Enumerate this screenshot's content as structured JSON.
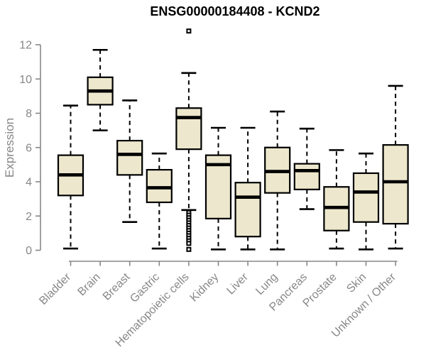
{
  "header": {
    "title": "ENSG00000184408 - KCND2"
  },
  "colors": {
    "background": "#FFFFFF",
    "box_fill": "#EDE8CD",
    "box_stroke": "#000000",
    "median_stroke": "#000000",
    "whisker_stroke": "#000000",
    "outlier_stroke": "#000000",
    "axis": "#878787",
    "tick_label": "#878787",
    "title_color": "#000000"
  },
  "chart_data": {
    "type": "boxplot",
    "title": "ENSG00000184408 - KCND2",
    "xlabel": "",
    "ylabel": "Expression",
    "ylim": [
      0,
      12
    ],
    "yticks": [
      0,
      2,
      4,
      6,
      8,
      10,
      12
    ],
    "grid": false,
    "legend_position": "none",
    "categories": [
      "Bladder",
      "Brain",
      "Breast",
      "Gastric",
      "Hematopoietic cells",
      "Kidney",
      "Liver",
      "Lung",
      "Pancreas",
      "Prostate",
      "Skin",
      "Unknown / Other"
    ],
    "series": [
      {
        "name": "Bladder",
        "whisker_low": 0.1,
        "q1": 3.2,
        "median": 4.4,
        "q3": 5.55,
        "whisker_high": 8.45,
        "outliers": []
      },
      {
        "name": "Brain",
        "whisker_low": 7.0,
        "q1": 8.5,
        "median": 9.3,
        "q3": 10.1,
        "whisker_high": 11.7,
        "outliers": []
      },
      {
        "name": "Breast",
        "whisker_low": 1.65,
        "q1": 4.4,
        "median": 5.6,
        "q3": 6.4,
        "whisker_high": 8.75,
        "outliers": []
      },
      {
        "name": "Gastric",
        "whisker_low": 0.1,
        "q1": 2.8,
        "median": 3.65,
        "q3": 4.7,
        "whisker_high": 5.65,
        "outliers": []
      },
      {
        "name": "Hematopoietic cells",
        "whisker_low": 2.35,
        "q1": 5.9,
        "median": 7.75,
        "q3": 8.3,
        "whisker_high": 10.35,
        "outliers": [
          12.8,
          2.2,
          2.05,
          1.9,
          1.75,
          1.6,
          1.45,
          1.3,
          1.15,
          1.0,
          0.85,
          0.7,
          0.55,
          0.4,
          0.05
        ]
      },
      {
        "name": "Kidney",
        "whisker_low": 0.05,
        "q1": 1.85,
        "median": 5.0,
        "q3": 5.55,
        "whisker_high": 7.15,
        "outliers": []
      },
      {
        "name": "Liver",
        "whisker_low": 0.05,
        "q1": 0.8,
        "median": 3.1,
        "q3": 3.95,
        "whisker_high": 7.15,
        "outliers": []
      },
      {
        "name": "Lung",
        "whisker_low": 0.05,
        "q1": 3.35,
        "median": 4.6,
        "q3": 6.0,
        "whisker_high": 8.1,
        "outliers": []
      },
      {
        "name": "Pancreas",
        "whisker_low": 2.4,
        "q1": 3.55,
        "median": 4.65,
        "q3": 5.05,
        "whisker_high": 7.1,
        "outliers": []
      },
      {
        "name": "Prostate",
        "whisker_low": 0.1,
        "q1": 1.15,
        "median": 2.5,
        "q3": 3.7,
        "whisker_high": 5.85,
        "outliers": []
      },
      {
        "name": "Skin",
        "whisker_low": 0.05,
        "q1": 1.65,
        "median": 3.4,
        "q3": 4.5,
        "whisker_high": 5.65,
        "outliers": []
      },
      {
        "name": "Unknown / Other",
        "whisker_low": 0.1,
        "q1": 1.55,
        "median": 4.0,
        "q3": 6.15,
        "whisker_high": 9.6,
        "outliers": []
      }
    ]
  }
}
